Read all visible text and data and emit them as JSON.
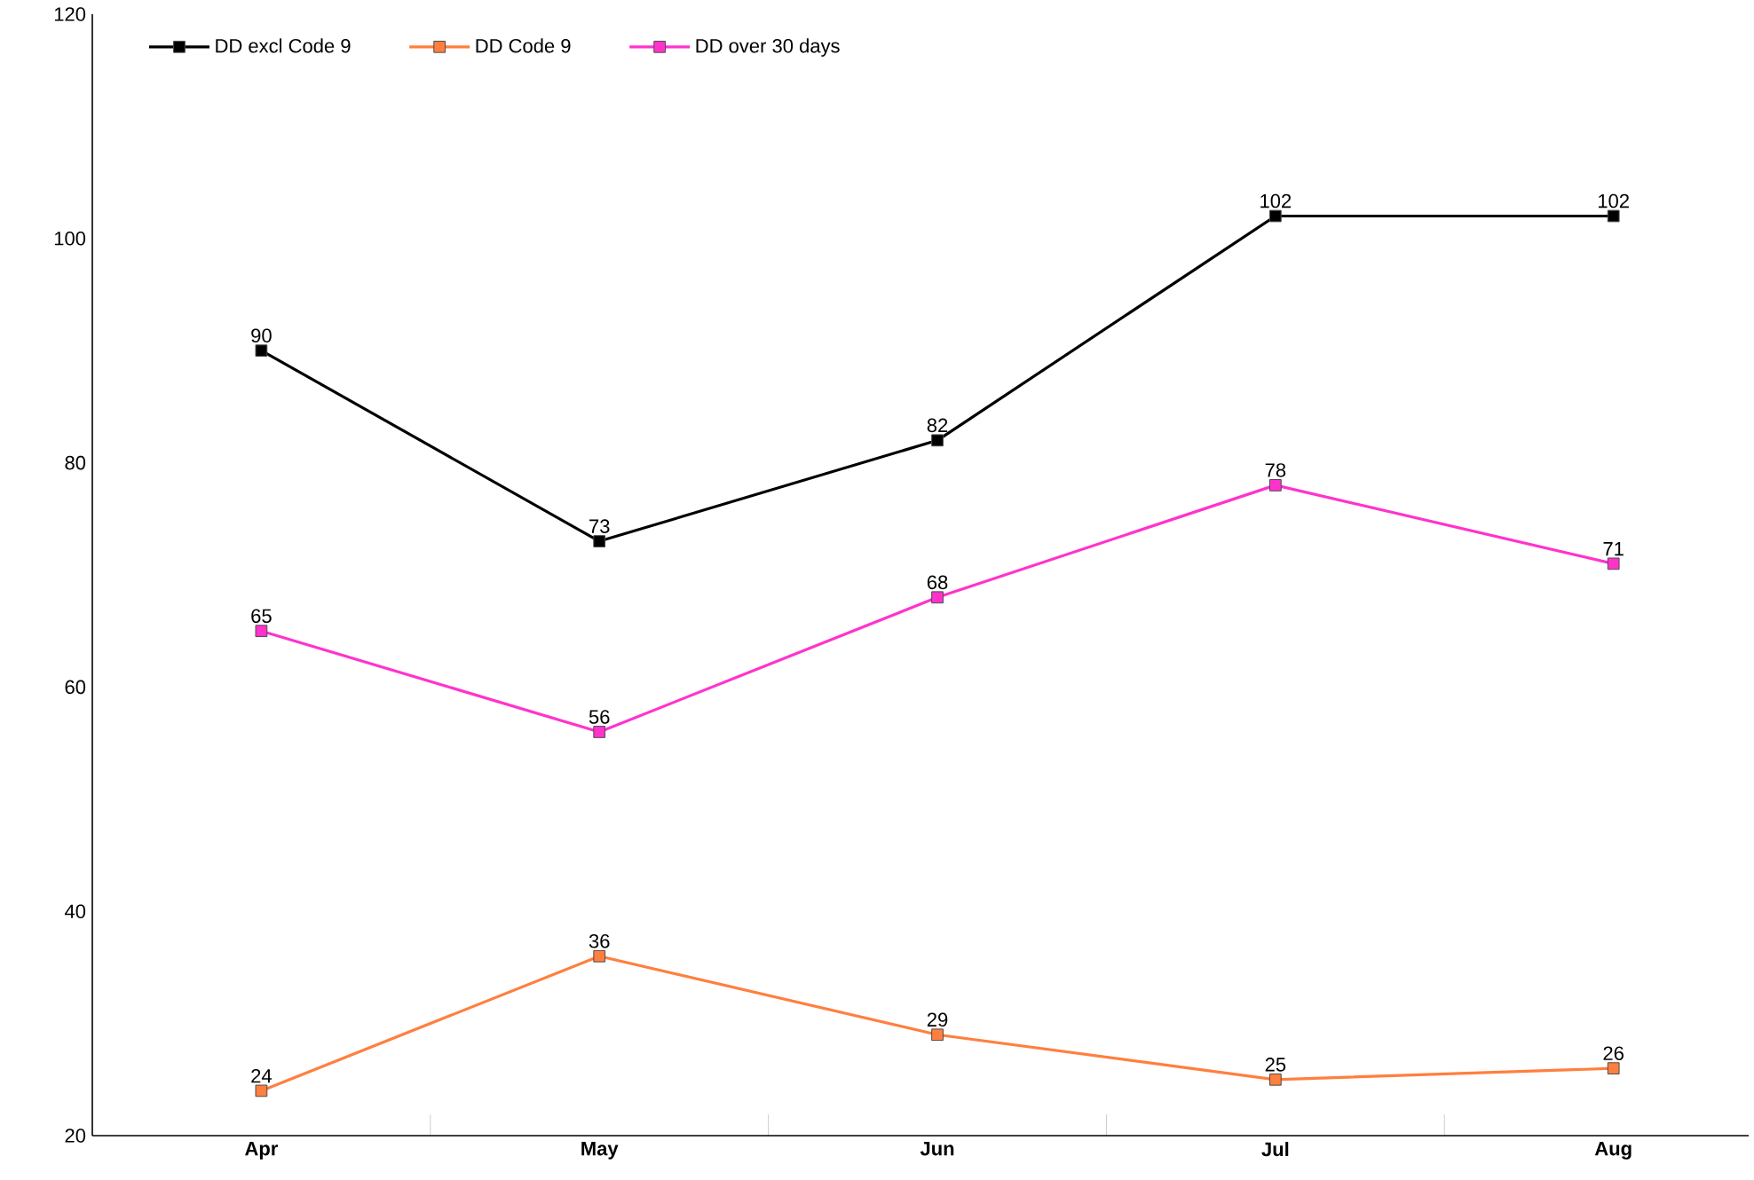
{
  "chart_data": {
    "type": "line",
    "categories": [
      "Apr",
      "May",
      "Jun",
      "Jul",
      "Aug"
    ],
    "series": [
      {
        "name": "DD excl Code 9",
        "color": "#000000",
        "values": [
          90,
          73,
          82,
          102,
          102
        ]
      },
      {
        "name": "DD Code 9",
        "color": "#ff7f3f",
        "values": [
          24,
          36,
          29,
          25,
          26
        ]
      },
      {
        "name": "DD over 30 days",
        "color": "#ff33cc",
        "values": [
          65,
          56,
          68,
          78,
          71
        ]
      }
    ],
    "ylim": [
      20,
      120
    ],
    "yticks": [
      20,
      40,
      60,
      80,
      100,
      120
    ],
    "marker": "square",
    "data_labels": true,
    "legend": "top left",
    "grid": false
  }
}
